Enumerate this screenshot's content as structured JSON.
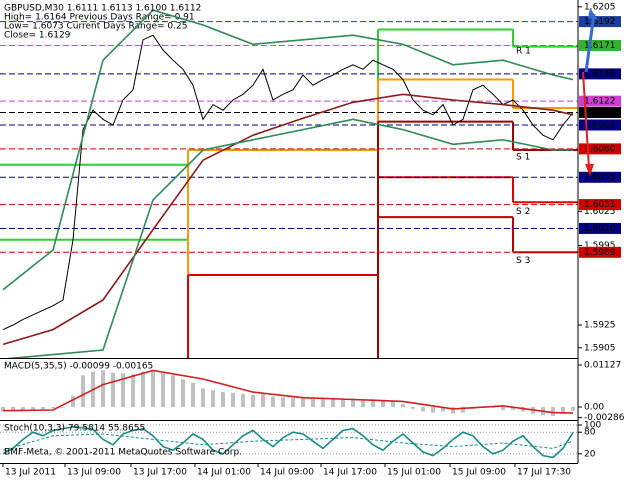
{
  "chart_data": [
    {
      "type": "line",
      "title": "GBPUSD,M30 1.6111 1.6113 1.6100 1.6112",
      "info": [
        "High= 1.6164   Previous Days Range= 0.91",
        "Low= 1.6073   Current Days Range= 0.25",
        "Close= 1.6129"
      ],
      "x": [
        0,
        1,
        2,
        3,
        4,
        5,
        6,
        7,
        8,
        9,
        10,
        11,
        12,
        13,
        14,
        15,
        16,
        17,
        18,
        19,
        20,
        21,
        22,
        23,
        24,
        25,
        26,
        27,
        28,
        29,
        30,
        31,
        32,
        33,
        34,
        35,
        36,
        37,
        38,
        39,
        40,
        41,
        42,
        43,
        44,
        45,
        46,
        47,
        48,
        49,
        50,
        51,
        52,
        53,
        54,
        55,
        56,
        57
      ],
      "xlim": [
        -0.3,
        57.5
      ],
      "ylim": [
        1.5896,
        1.6211
      ],
      "yticks": [
        1.6205,
        1.6025,
        1.5995,
        1.5925,
        1.5905
      ],
      "series": [
        {
          "color": "#000000",
          "values": [
            1.5921,
            1.5925,
            1.593,
            1.5934,
            1.5938,
            1.5942,
            1.5947,
            1.6,
            1.6097,
            1.6114,
            1.6106,
            1.6101,
            1.6123,
            1.6132,
            1.6176,
            1.618,
            1.6167,
            1.6158,
            1.615,
            1.6136,
            1.6106,
            1.6119,
            1.6114,
            1.6123,
            1.6128,
            1.6136,
            1.615,
            1.6123,
            1.6128,
            1.6132,
            1.6145,
            1.6136,
            1.6141,
            1.6145,
            1.615,
            1.6154,
            1.615,
            1.6158,
            1.6154,
            1.615,
            1.6141,
            1.6123,
            1.6114,
            1.611,
            1.6119,
            1.6101,
            1.6106,
            1.6132,
            1.6136,
            1.6128,
            1.6119,
            1.6123,
            1.6114,
            1.6101,
            1.6092,
            1.6088,
            1.6101,
            1.6112
          ]
        },
        {
          "color": "#8b1a1a",
          "x": [
            0,
            5,
            10,
            15,
            20,
            25,
            30,
            35,
            40,
            45,
            50,
            55,
            57
          ],
          "values": [
            1.5908,
            1.5921,
            1.5947,
            1.6009,
            1.607,
            1.6092,
            1.6107,
            1.6121,
            1.6128,
            1.6123,
            1.6119,
            1.6114,
            1.611
          ]
        },
        {
          "color": "#2e8b57",
          "x": [
            0,
            5,
            10,
            15,
            20,
            25,
            30,
            35,
            40,
            45,
            50,
            55,
            57
          ],
          "values": [
            1.5956,
            1.5991,
            1.6158,
            1.6202,
            1.6189,
            1.6172,
            1.6176,
            1.618,
            1.6172,
            1.6154,
            1.6158,
            1.6145,
            1.6141
          ]
        },
        {
          "color": "#2e8b57",
          "x": [
            0,
            5,
            10,
            15,
            20,
            25,
            30,
            35,
            40,
            45,
            50,
            55,
            57
          ],
          "values": [
            1.5895,
            1.5899,
            1.5903,
            1.6035,
            1.6079,
            1.6088,
            1.6097,
            1.6106,
            1.6097,
            1.6084,
            1.6088,
            1.6079,
            1.6079
          ]
        }
      ],
      "steps": [
        {
          "x": [
            -0.3,
            18.5
          ],
          "value": 1.6066,
          "color": "#32cd32"
        },
        {
          "x": [
            -0.3,
            18.5
          ],
          "value": 1.6,
          "color": "#32cd32"
        },
        {
          "x": [
            37.5,
            51
          ],
          "value": 1.6185,
          "color": "#32cd32"
        },
        {
          "x": [
            51,
            57.5
          ],
          "value": 1.617,
          "color": "#32cd32"
        },
        {
          "x": [
            18.5,
            37.5
          ],
          "value": 1.6079,
          "color": "#ff9900"
        },
        {
          "x": [
            37.5,
            51
          ],
          "value": 1.6141,
          "color": "#ff9900"
        },
        {
          "x": [
            51,
            57.5
          ],
          "value": 1.6116,
          "color": "#ff9900"
        },
        {
          "x": [
            18.5,
            37.5
          ],
          "value": 1.5969,
          "color": "#e00000"
        },
        {
          "x": [
            37.5,
            51
          ],
          "value": 1.6055,
          "color": "#e00000"
        },
        {
          "x": [
            51,
            57.5
          ],
          "value": 1.6033,
          "color": "#e00000"
        },
        {
          "x": [
            37.5,
            51
          ],
          "value": 1.602,
          "color": "#c00000"
        },
        {
          "x": [
            51,
            57.5
          ],
          "value": 1.5989,
          "color": "#c00000"
        },
        {
          "x": [
            37.5,
            51
          ],
          "value": 1.6104,
          "color": "#a00000"
        },
        {
          "x": [
            51,
            57.5
          ],
          "value": 1.6079,
          "color": "#a00000"
        }
      ],
      "annotations": [
        {
          "text": "R 1",
          "x": 51.3,
          "value": 1.6166,
          "color": "#a0c080"
        },
        {
          "text": "S 1",
          "x": 51.3,
          "value": 1.6073,
          "color": "#e0a040"
        },
        {
          "text": "S 2",
          "x": 51.3,
          "value": 1.6025,
          "color": "#e0a040"
        },
        {
          "text": "S 3",
          "x": 51.3,
          "value": 1.5982,
          "color": "#e0a040"
        }
      ],
      "levels": [
        {
          "value": 1.6192,
          "label": "1.6192",
          "color": "#1c3c9c"
        },
        {
          "value": 1.6171,
          "label": "1.6171",
          "color": "#32b432"
        },
        {
          "value": 1.6146,
          "label": "1.6146",
          "color": "#000080"
        },
        {
          "value": 1.6122,
          "label": "1.6122",
          "color": "#d040d0"
        },
        {
          "value": 1.6112,
          "label": "1.6112",
          "color": "#000000"
        },
        {
          "value": 1.6101,
          "label": "1.6101",
          "color": "#000080"
        },
        {
          "value": 1.608,
          "label": "1.6080",
          "color": "#d00000"
        },
        {
          "value": 1.6055,
          "label": "1.6055",
          "color": "#000080"
        },
        {
          "value": 1.6031,
          "label": "1.6031",
          "color": "#d00000"
        },
        {
          "value": 1.601,
          "label": "1.6010",
          "color": "#000080"
        },
        {
          "value": 1.5989,
          "label": "1.5989",
          "color": "#d00000"
        }
      ]
    },
    {
      "type": "bar",
      "title": "MACD(5,35,5) -0.00099 -0.00165",
      "ylim": [
        -0.00322,
        0.01261
      ],
      "yticks": [
        0.01127,
        {
          "value": 0,
          "label": "0.00"
        },
        -0.00286
      ],
      "series": [
        {
          "style": "bar",
          "color": "#c0c0c0",
          "values": [
            -0.0012,
            -0.0012,
            -0.001,
            -0.0008,
            -0.0006,
            -0.0004,
            -0.0002,
            0.003,
            0.0085,
            0.0095,
            0.0098,
            0.0092,
            0.009,
            0.0088,
            0.0095,
            0.0096,
            0.009,
            0.0085,
            0.0075,
            0.0065,
            0.005,
            0.0045,
            0.004,
            0.0038,
            0.0035,
            0.0033,
            0.0035,
            0.0028,
            0.0026,
            0.0025,
            0.0026,
            0.0022,
            0.0022,
            0.0022,
            0.0022,
            0.0023,
            0.002,
            0.0021,
            0.0018,
            0.0015,
            0.0008,
            -0.0005,
            -0.0012,
            -0.0015,
            -0.0012,
            -0.0018,
            -0.0015,
            -0.0005,
            0.0002,
            -0.0002,
            -0.0008,
            -0.0008,
            -0.0012,
            -0.0018,
            -0.0022,
            -0.0024,
            -0.0018,
            -0.00099
          ]
        },
        {
          "style": "line",
          "color": "#d02020",
          "x": [
            0,
            5,
            10,
            15,
            20,
            25,
            30,
            35,
            40,
            45,
            50,
            55,
            57
          ],
          "values": [
            -0.001,
            -0.0008,
            0.006,
            0.0098,
            0.0075,
            0.004,
            0.0025,
            0.002,
            0.0015,
            -0.0005,
            0.0003,
            -0.0015,
            -0.00165
          ]
        }
      ]
    },
    {
      "type": "line",
      "title": "Stoch(10,3,3) 79.5814 55.8655",
      "ylim": [
        0,
        100
      ],
      "yticks": [
        100,
        80,
        20
      ],
      "series": [
        {
          "style": "line",
          "color": "#1a8a8a",
          "values": [
            20,
            35,
            60,
            80,
            70,
            85,
            90,
            95,
            92,
            88,
            60,
            45,
            75,
            85,
            90,
            70,
            40,
            30,
            50,
            75,
            60,
            30,
            20,
            45,
            70,
            85,
            60,
            40,
            65,
            80,
            75,
            55,
            35,
            60,
            85,
            90,
            70,
            45,
            30,
            55,
            75,
            50,
            25,
            15,
            35,
            60,
            80,
            70,
            40,
            20,
            30,
            55,
            70,
            40,
            15,
            10,
            35,
            79.5814
          ]
        },
        {
          "style": "dashed",
          "color": "#1a8a8a",
          "x": [
            0,
            5,
            10,
            15,
            20,
            25,
            30,
            35,
            40,
            45,
            50,
            55,
            57
          ],
          "values": [
            30,
            70,
            75,
            60,
            45,
            55,
            60,
            65,
            50,
            40,
            50,
            35,
            55.8655
          ]
        }
      ],
      "xticks": [
        {
          "value": 0,
          "label": "13 Jul 2011"
        },
        {
          "value": 6.2,
          "label": "13 Jul 09:00"
        },
        {
          "value": 12.8,
          "label": "13 Jul 17:00"
        },
        {
          "value": 19.2,
          "label": "14 Jul 01:00"
        },
        {
          "value": 25.5,
          "label": "14 Jul 09:00"
        },
        {
          "value": 31.8,
          "label": "14 Jul 17:00"
        },
        {
          "value": 38.2,
          "label": "15 Jul 01:00"
        },
        {
          "value": 44.7,
          "label": "15 Jul 09:00"
        },
        {
          "value": 51.2,
          "label": "17 Jul 17:30"
        }
      ]
    }
  ],
  "footer": "BMF-Meta, © 2001-2011 MetaQuotes Software Corp."
}
